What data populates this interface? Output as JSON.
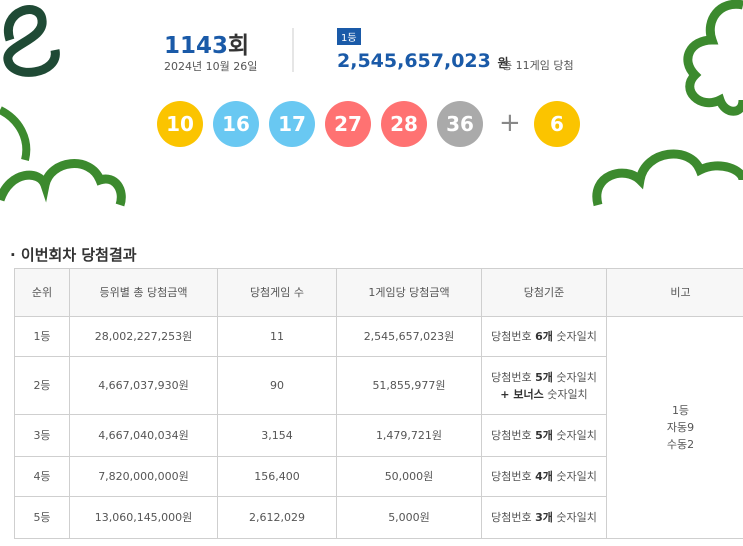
{
  "header": {
    "round": "1143",
    "round_suffix": "회",
    "date": "2024년 10월 26일",
    "rank_badge": "1등",
    "prize": "2,545,657,023",
    "prize_unit": "원",
    "winners_note": "총 11게임 당첨"
  },
  "numbers": [
    {
      "value": 10,
      "color": "#fbc400"
    },
    {
      "value": 16,
      "color": "#69c8f2"
    },
    {
      "value": 17,
      "color": "#69c8f2"
    },
    {
      "value": 27,
      "color": "#ff7272"
    },
    {
      "value": 28,
      "color": "#ff7272"
    },
    {
      "value": 36,
      "color": "#aaaaaa"
    }
  ],
  "plus": "+",
  "bonus": {
    "value": 6,
    "color": "#fbc400"
  },
  "section_title": "이번회차 당첨결과",
  "table": {
    "headers": [
      "순위",
      "등위별 총 당첨금액",
      "당첨게임 수",
      "1게임당 당첨금액",
      "당첨기준",
      "비고"
    ],
    "rows": [
      {
        "cells": [
          "1등",
          "28,002,227,253원",
          "11",
          "2,545,657,023원"
        ],
        "criteria": [
          [
            {
              "text": "당첨번호 "
            },
            {
              "text": "6개",
              "bold": true
            },
            {
              "text": " 숫자일치"
            }
          ]
        ]
      },
      {
        "cells": [
          "2등",
          "4,667,037,930원",
          "90",
          "51,855,977원"
        ],
        "criteria": [
          [
            {
              "text": "당첨번호 "
            },
            {
              "text": "5개",
              "bold": true
            },
            {
              "text": " 숫자일치"
            }
          ],
          [
            {
              "text": "+ 보너스",
              "bold": true
            },
            {
              "text": " 숫자일치"
            }
          ]
        ]
      },
      {
        "cells": [
          "3등",
          "4,667,040,034원",
          "3,154",
          "1,479,721원"
        ],
        "criteria": [
          [
            {
              "text": "당첨번호 "
            },
            {
              "text": "5개",
              "bold": true
            },
            {
              "text": " 숫자일치"
            }
          ]
        ]
      },
      {
        "cells": [
          "4등",
          "7,820,000,000원",
          "156,400",
          "50,000원"
        ],
        "criteria": [
          [
            {
              "text": "당첨번호 "
            },
            {
              "text": "4개",
              "bold": true
            },
            {
              "text": " 숫자일치"
            }
          ]
        ]
      },
      {
        "cells": [
          "5등",
          "13,060,145,000원",
          "2,612,029",
          "5,000원"
        ],
        "criteria": [
          [
            {
              "text": "당첨번호 "
            },
            {
              "text": "3개",
              "bold": true
            },
            {
              "text": " 숫자일치"
            }
          ]
        ]
      }
    ],
    "note": [
      "1등",
      "자동9",
      "수동2"
    ]
  }
}
